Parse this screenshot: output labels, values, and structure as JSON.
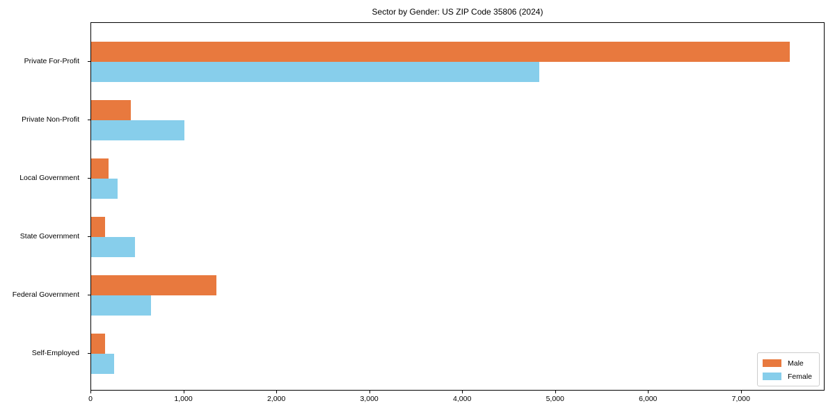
{
  "chart": {
    "title": "Sector by Gender: US ZIP Code 35806 (2024)"
  },
  "chart_data": {
    "type": "bar",
    "orientation": "horizontal",
    "title": "Sector by Gender: US ZIP Code 35806 (2024)",
    "xlabel": "",
    "ylabel": "",
    "categories": [
      "Private For-Profit",
      "Private Non-Profit",
      "Local Government",
      "State Government",
      "Federal Government",
      "Self-Employed"
    ],
    "series": [
      {
        "name": "Male",
        "color": "#e8793e",
        "values": [
          7520,
          430,
          190,
          150,
          1350,
          150
        ]
      },
      {
        "name": "Female",
        "color": "#87ceeb",
        "values": [
          4820,
          1000,
          285,
          470,
          645,
          250
        ]
      }
    ],
    "xlim": [
      0,
      7900
    ],
    "xticks": [
      0,
      1000,
      2000,
      3000,
      4000,
      5000,
      6000,
      7000
    ],
    "xtick_labels": [
      "0",
      "1,000",
      "2,000",
      "3,000",
      "4,000",
      "5,000",
      "6,000",
      "7,000"
    ],
    "grid": false,
    "legend_position": "lower right"
  }
}
